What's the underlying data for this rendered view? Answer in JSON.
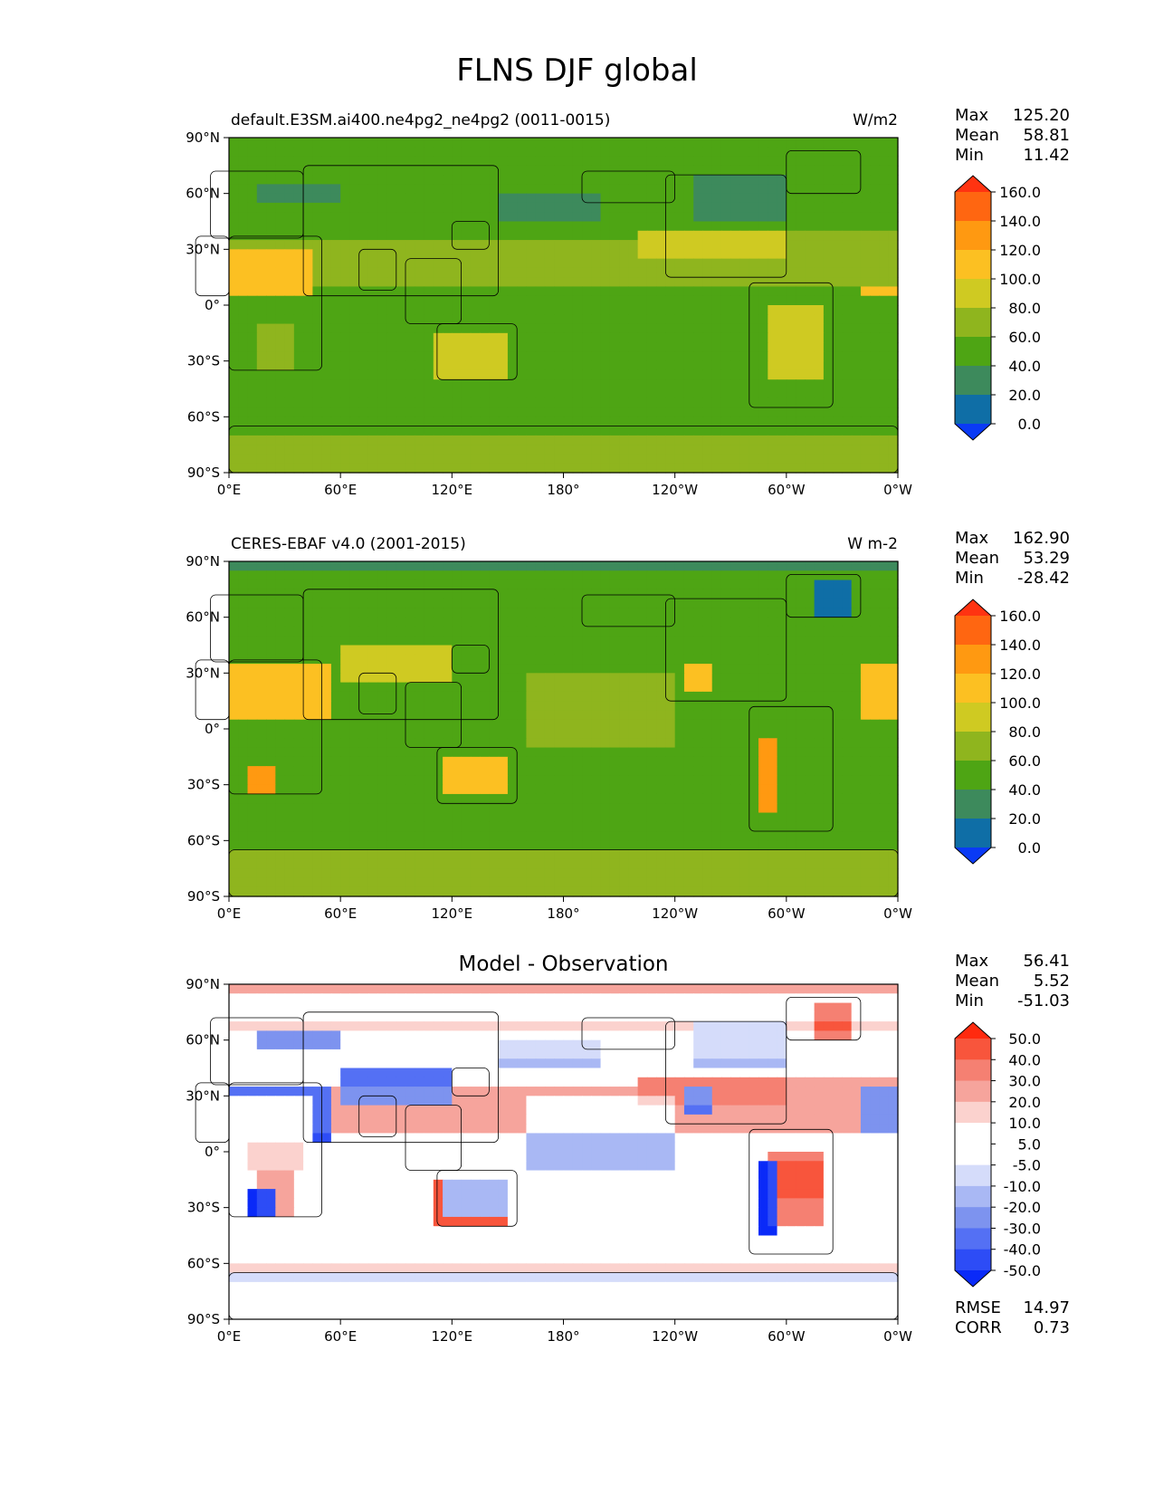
{
  "figure": {
    "title": "FLNS DJF global"
  },
  "chart_data": [
    {
      "type": "heatmap",
      "title_left": "default.E3SM.ai400.ne4pg2_ne4pg2 (0011-0015)",
      "title_right": "W/m2",
      "title_center": "",
      "x_ticks": [
        "0°E",
        "60°E",
        "120°E",
        "180°",
        "120°W",
        "60°W",
        "0°W"
      ],
      "y_ticks": [
        "90°N",
        "60°N",
        "30°N",
        "0°",
        "30°S",
        "60°S",
        "90°S"
      ],
      "stats": [
        {
          "label": "Max",
          "value": "125.20"
        },
        {
          "label": "Mean",
          "value": "58.81"
        },
        {
          "label": "Min",
          "value": "11.42"
        }
      ],
      "colorbar": {
        "levels": [
          "160.0",
          "140.0",
          "120.0",
          "100.0",
          "80.0",
          "60.0",
          "40.0",
          "20.0",
          "0.0"
        ],
        "colors": [
          "#ff3311",
          "#ff6611",
          "#ff9911",
          "#fcc022",
          "#cfca22",
          "#8fb51e",
          "#4ea514",
          "#3d8a5c",
          "#0f6ea6",
          "#0a3af5"
        ]
      },
      "pattern": "model"
    },
    {
      "type": "heatmap",
      "title_left": "CERES-EBAF v4.0 (2001-2015)",
      "title_right": "W m-2",
      "title_center": "",
      "x_ticks": [
        "0°E",
        "60°E",
        "120°E",
        "180°",
        "120°W",
        "60°W",
        "0°W"
      ],
      "y_ticks": [
        "90°N",
        "60°N",
        "30°N",
        "0°",
        "30°S",
        "60°S",
        "90°S"
      ],
      "stats": [
        {
          "label": "Max",
          "value": "162.90"
        },
        {
          "label": "Mean",
          "value": "53.29"
        },
        {
          "label": "Min",
          "value": "-28.42"
        }
      ],
      "colorbar": {
        "levels": [
          "160.0",
          "140.0",
          "120.0",
          "100.0",
          "80.0",
          "60.0",
          "40.0",
          "20.0",
          "0.0"
        ],
        "colors": [
          "#ff3311",
          "#ff6611",
          "#ff9911",
          "#fcc022",
          "#cfca22",
          "#8fb51e",
          "#4ea514",
          "#3d8a5c",
          "#0f6ea6",
          "#0a3af5"
        ]
      },
      "pattern": "obs"
    },
    {
      "type": "heatmap",
      "title_left": "",
      "title_right": "",
      "title_center": "Model - Observation",
      "x_ticks": [
        "0°E",
        "60°E",
        "120°E",
        "180°",
        "120°W",
        "60°W",
        "0°W"
      ],
      "y_ticks": [
        "90°N",
        "60°N",
        "30°N",
        "0°",
        "30°S",
        "60°S",
        "90°S"
      ],
      "stats": [
        {
          "label": "Max",
          "value": "56.41"
        },
        {
          "label": "Mean",
          "value": "5.52"
        },
        {
          "label": "Min",
          "value": "-51.03"
        }
      ],
      "extra_stats": [
        {
          "label": "RMSE",
          "value": "14.97"
        },
        {
          "label": "CORR",
          "value": "0.73"
        }
      ],
      "colorbar": {
        "levels": [
          "50.0",
          "40.0",
          "30.0",
          "20.0",
          "10.0",
          "5.0",
          "-5.0",
          "-10.0",
          "-20.0",
          "-30.0",
          "-40.0",
          "-50.0"
        ],
        "colors": [
          "#ff2a0f",
          "#f8553c",
          "#f58072",
          "#f6a49c",
          "#fbd2ce",
          "#ffffff",
          "#ffffff",
          "#d5dcfa",
          "#a9b8f4",
          "#7d93ef",
          "#5470f4",
          "#2d4cf6",
          "#0a2af8"
        ]
      },
      "pattern": "diff"
    }
  ]
}
